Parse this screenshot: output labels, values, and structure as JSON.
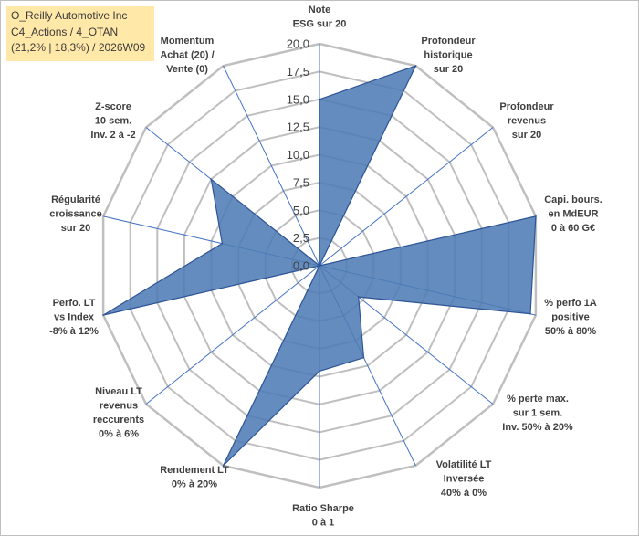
{
  "title": {
    "line1": "O_Reilly Automotive Inc",
    "line2": "C4_Actions / 4_OTAN",
    "line3": "(21,2% | 18,3%) / 2026W09"
  },
  "colors": {
    "fill": "#4f7cb5",
    "stroke": "#2f5597",
    "grid": "#bfbfbf",
    "spoke": "#4472c4",
    "title_bg": "#ffe8a8"
  },
  "chart_data": {
    "type": "radar",
    "r_range": [
      0,
      20
    ],
    "r_ticks": [
      "0,0",
      "2,5",
      "5,0",
      "7,5",
      "10,0",
      "12,5",
      "15,0",
      "17,5",
      "20,0"
    ],
    "axes": [
      {
        "label": [
          "Note",
          "ESG sur 20"
        ],
        "value": 15
      },
      {
        "label": [
          "Profondeur",
          "historique",
          "sur 20"
        ],
        "value": 20
      },
      {
        "label": [
          "Profondeur",
          "revenus",
          "sur 20"
        ],
        "value": 0
      },
      {
        "label": [
          "Capi. bours.",
          "en MdEUR",
          "0 à 60 G€"
        ],
        "value": 20
      },
      {
        "label": [
          "% perfo 1A",
          "positive",
          "50% à 80%"
        ],
        "value": 19.5
      },
      {
        "label": [
          "% perte max.",
          "sur 1 sem.",
          "Inv. 50% à 20%"
        ],
        "value": 4.5
      },
      {
        "label": [
          "Volatilité LT",
          "Inversée",
          "40% à 0%"
        ],
        "value": 9.2
      },
      {
        "label": [
          "Ratio Sharpe",
          "0 à 1"
        ],
        "value": 9.5
      },
      {
        "label": [
          "Rendement LT",
          "0% à 20%"
        ],
        "value": 20
      },
      {
        "label": [
          "Niveau LT",
          "revenus",
          "reccurents",
          "0% à 6%"
        ],
        "value": 0
      },
      {
        "label": [
          "Perfo. LT",
          "vs Index",
          "-8% à 12%"
        ],
        "value": 20
      },
      {
        "label": [
          "Régularité",
          "croissance",
          "sur 20"
        ],
        "value": 9
      },
      {
        "label": [
          "Z-score",
          "10 sem.",
          "Inv. 2 à -2"
        ],
        "value": 12.5
      },
      {
        "label": [
          "Momentum",
          "Achat (20) /",
          "Vente (0)"
        ],
        "value": 0
      }
    ]
  }
}
